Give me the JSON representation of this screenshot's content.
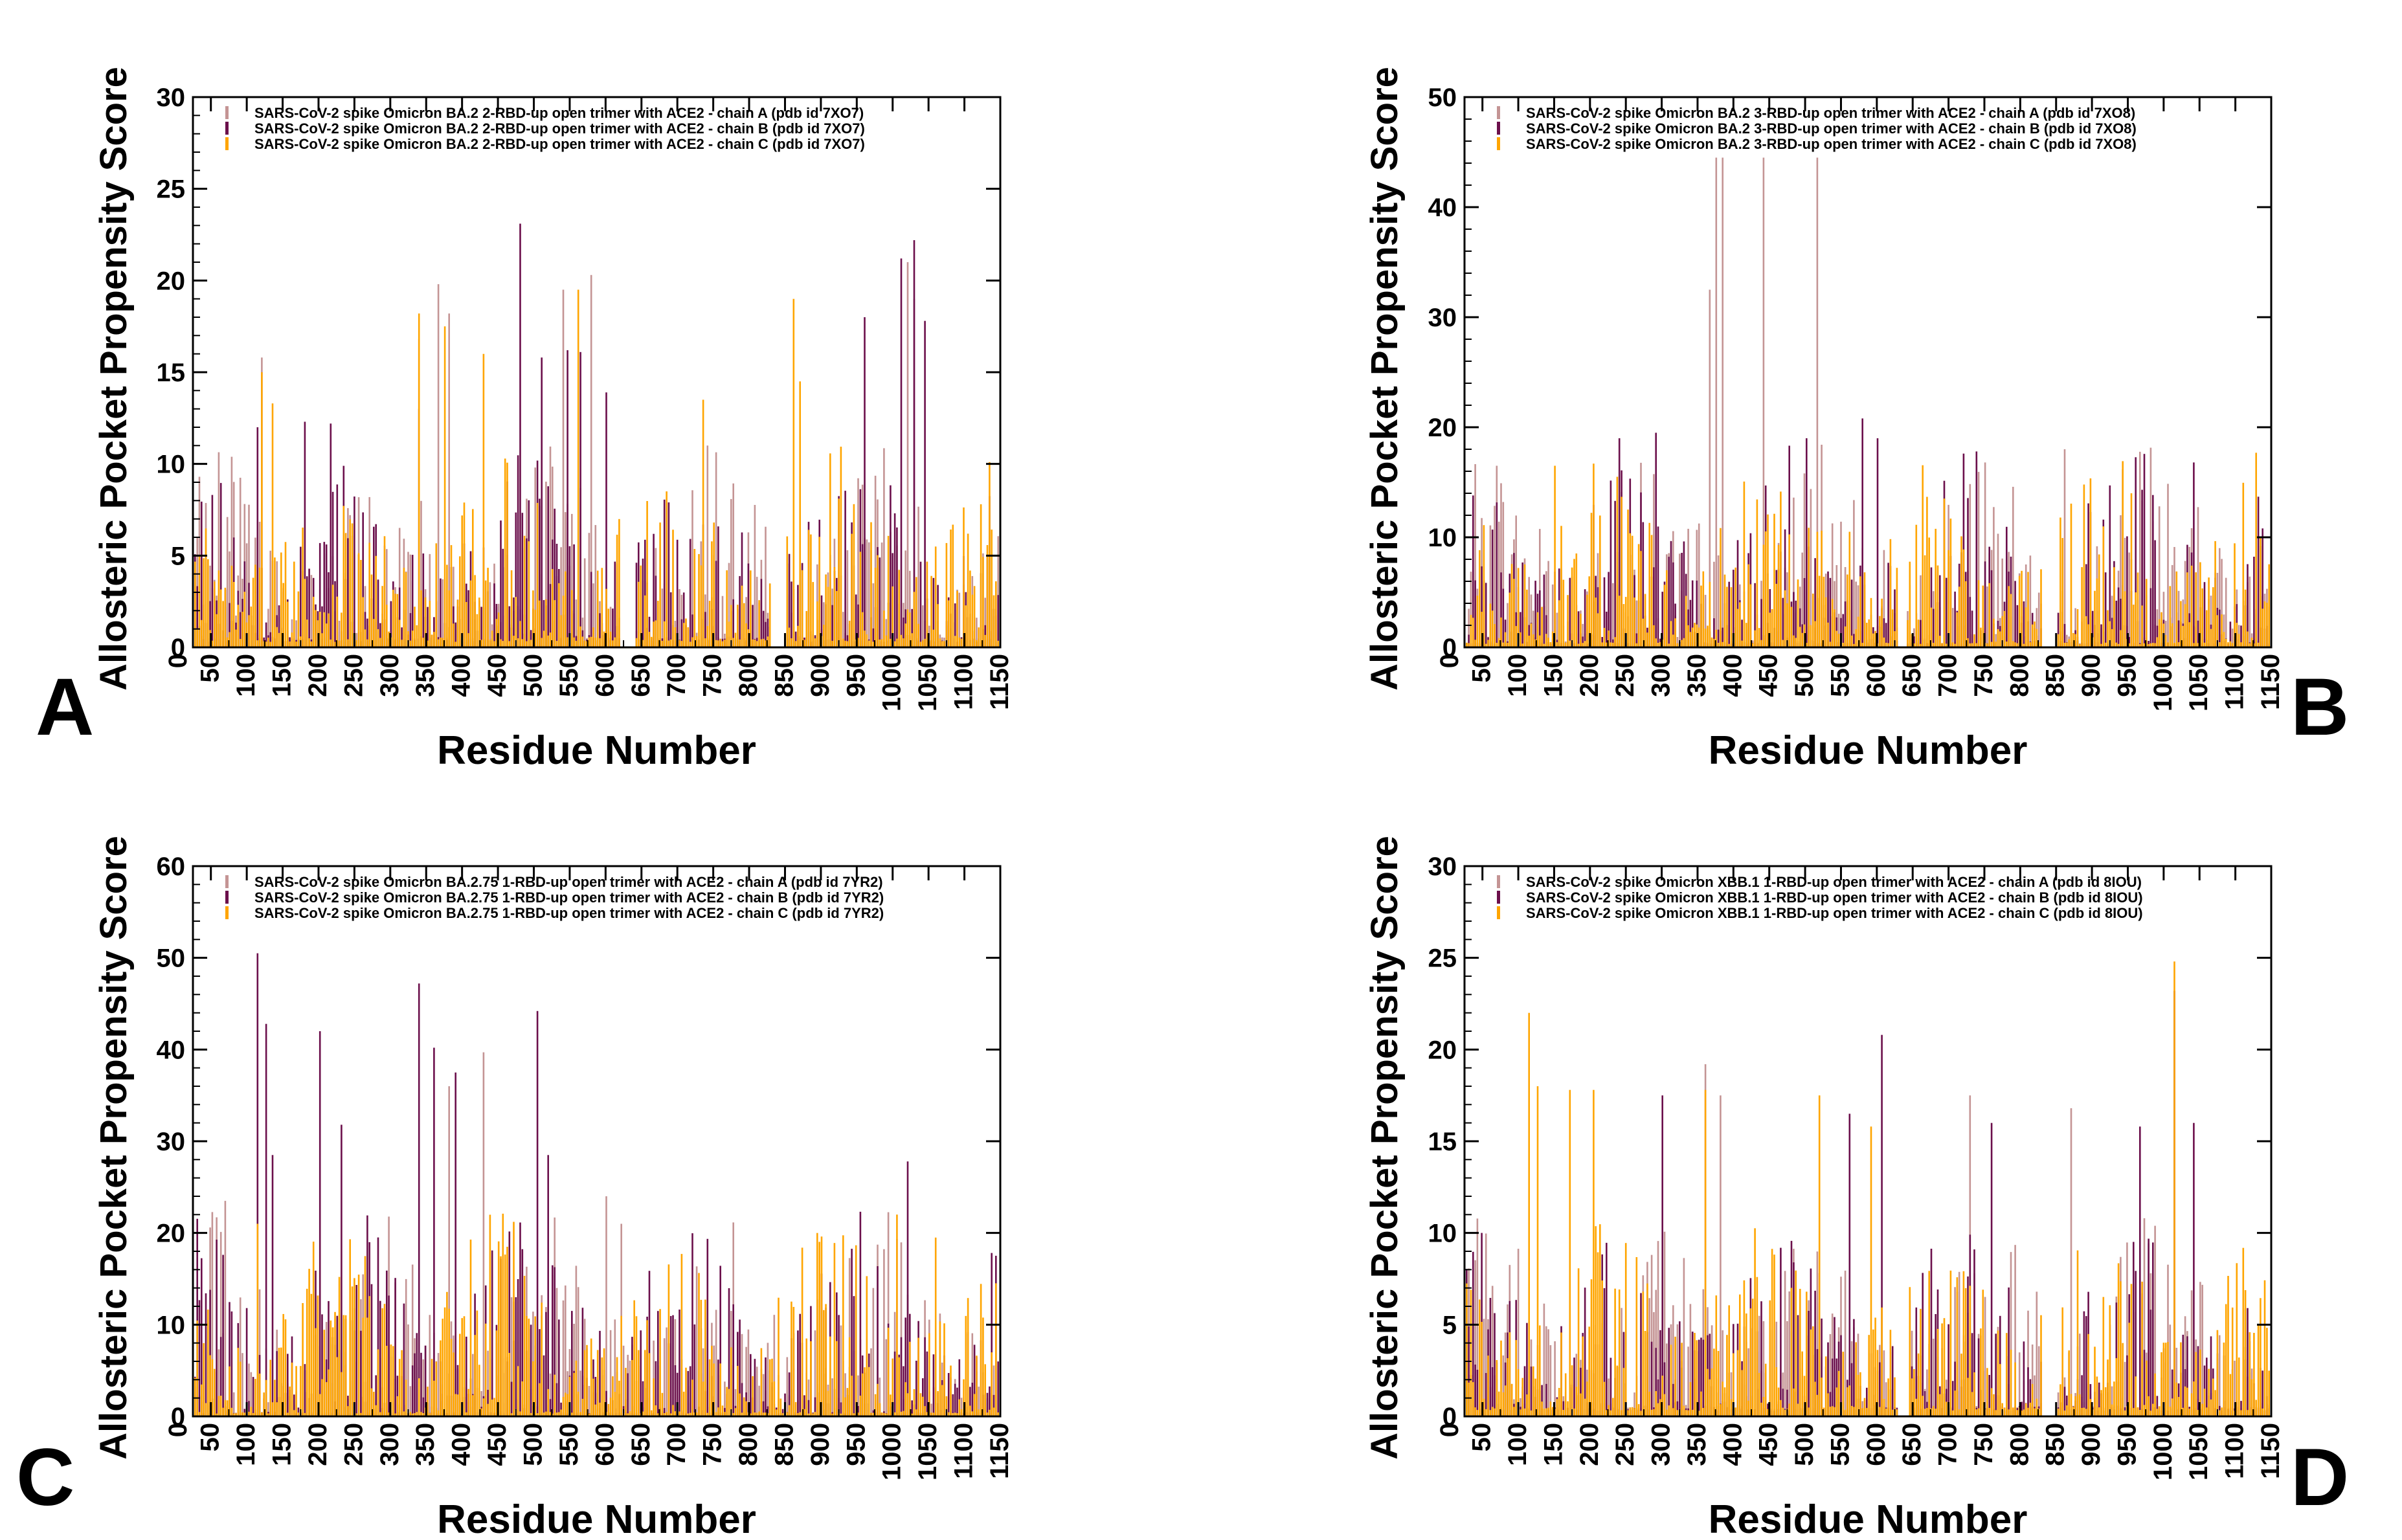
{
  "figure": {
    "x_axis_title": "Residue Number",
    "y_axis_title": "Allosteric Pocket  Propensity Score",
    "x_ticks": [
      0,
      50,
      100,
      150,
      200,
      250,
      300,
      350,
      400,
      450,
      500,
      550,
      600,
      650,
      700,
      750,
      800,
      850,
      900,
      950,
      1000,
      1050,
      1100,
      1150
    ],
    "series_colors": {
      "chain_a": "#c49494",
      "chain_b": "#6b0f4b",
      "chain_c": "#ffa500"
    }
  },
  "chart_data": [
    {
      "panel": "A",
      "type": "bar",
      "ylim": [
        0,
        30
      ],
      "yticks": [
        0,
        5,
        10,
        15,
        20,
        25,
        30
      ],
      "xlim": [
        25,
        1150
      ],
      "gaps": [
        [
          620,
          640
        ],
        [
          830,
          850
        ]
      ],
      "series": [
        {
          "name": "SARS-CoV-2 spike Omicron BA.2 2-RBD-up open trimer with ACE2 - chain A (pdb id 7XO7)",
          "color": "#c49494",
          "peaks": [
            [
              120,
              15.8
            ],
            [
              340,
              16.8
            ],
            [
              365,
              19.8
            ],
            [
              380,
              18.2
            ],
            [
              540,
              19.5
            ],
            [
              580,
              20.3
            ],
            [
              740,
              11.0
            ],
            [
              1020,
              21.0
            ],
            [
              1030,
              19.0
            ]
          ]
        },
        {
          "name": "SARS-CoV-2 spike Omicron BA.2 2-RBD-up open trimer with ACE2 - chain B (pdb id 7XO7)",
          "color": "#6b0f4b",
          "peaks": [
            [
              115,
              12.0
            ],
            [
              180,
              12.3
            ],
            [
              215,
              12.2
            ],
            [
              340,
              13.0
            ],
            [
              480,
              23.1
            ],
            [
              510,
              15.8
            ],
            [
              545,
              16.2
            ],
            [
              565,
              16.1
            ],
            [
              600,
              13.9
            ],
            [
              960,
              18.0
            ],
            [
              1010,
              21.2
            ],
            [
              1030,
              22.2
            ],
            [
              1045,
              17.8
            ]
          ]
        },
        {
          "name": "SARS-CoV-2 spike Omicron BA.2 2-RBD-up open trimer with ACE2 - chain C (pdb id 7XO7)",
          "color": "#ffa500",
          "peaks": [
            [
              120,
              15.0
            ],
            [
              135,
              13.3
            ],
            [
              340,
              18.2
            ],
            [
              375,
              17.5
            ],
            [
              430,
              16.0
            ],
            [
              560,
              19.5
            ],
            [
              735,
              13.5
            ],
            [
              860,
              19.0
            ],
            [
              870,
              14.5
            ]
          ]
        }
      ]
    },
    {
      "panel": "B",
      "type": "bar",
      "ylim": [
        0,
        50
      ],
      "yticks": [
        0,
        10,
        20,
        30,
        40,
        50
      ],
      "xlim": [
        25,
        1150
      ],
      "gaps": [
        [
          630,
          640
        ],
        [
          830,
          850
        ]
      ],
      "series": [
        {
          "name": "SARS-CoV-2 spike Omicron BA.2 3-RBD-up open trimer with ACE2 - chain A (pdb id 7XO8)",
          "color": "#c49494",
          "peaks": [
            [
              70,
              16.5
            ],
            [
              365,
              32.5
            ],
            [
              375,
              44.5
            ],
            [
              385,
              44.5
            ],
            [
              440,
              44.5
            ],
            [
              515,
              44.5
            ],
            [
              860,
              18.0
            ],
            [
              750,
              16.8
            ]
          ]
        },
        {
          "name": "SARS-CoV-2 spike Omicron BA.2 3-RBD-up open trimer with ACE2 - chain B (pdb id 7XO8)",
          "color": "#6b0f4b",
          "peaks": [
            [
              240,
              19.0
            ],
            [
              290,
              19.5
            ],
            [
              500,
              19.0
            ],
            [
              580,
              20.8
            ],
            [
              600,
              19.0
            ],
            [
              1040,
              16.8
            ]
          ]
        },
        {
          "name": "SARS-CoV-2 spike Omicron BA.2 3-RBD-up open trimer with ACE2 - chain C (pdb id 7XO8)",
          "color": "#ffa500",
          "peaks": [
            [
              150,
              16.5
            ],
            [
              560,
              10.5
            ],
            [
              955,
              14.0
            ]
          ]
        }
      ]
    },
    {
      "panel": "C",
      "type": "bar",
      "ylim": [
        0,
        60
      ],
      "yticks": [
        0,
        10,
        20,
        30,
        40,
        50,
        60
      ],
      "xlim": [
        25,
        1150
      ],
      "gaps": [],
      "series": [
        {
          "name": "SARS-CoV-2 spike Omicron BA.2.75 1-RBD-up open trimer with ACE2 - chain A (pdb id 7YR2)",
          "color": "#c49494",
          "peaks": [
            [
              70,
              23.5
            ],
            [
              380,
              36.0
            ],
            [
              430,
              39.7
            ],
            [
              600,
              24.0
            ],
            [
              620,
              21.0
            ]
          ]
        },
        {
          "name": "SARS-CoV-2 spike Omicron BA.2.75 1-RBD-up open trimer with ACE2 - chain B (pdb id 7YR2)",
          "color": "#6b0f4b",
          "peaks": [
            [
              115,
              50.5
            ],
            [
              125,
              42.8
            ],
            [
              135,
              28.5
            ],
            [
              200,
              42.0
            ],
            [
              230,
              31.8
            ],
            [
              340,
              47.2
            ],
            [
              360,
              40.2
            ],
            [
              390,
              37.5
            ],
            [
              505,
              44.2
            ],
            [
              520,
              28.5
            ],
            [
              1020,
              27.8
            ]
          ]
        },
        {
          "name": "SARS-CoV-2 spike Omicron BA.2.75 1-RBD-up open trimer with ACE2 - chain C (pdb id 7YR2)",
          "color": "#ffa500",
          "peaks": [
            [
              115,
              21.0
            ],
            [
              1005,
              22.0
            ],
            [
              1060,
              19.5
            ]
          ]
        }
      ]
    },
    {
      "panel": "D",
      "type": "bar",
      "ylim": [
        0,
        30
      ],
      "yticks": [
        0,
        5,
        10,
        15,
        20,
        25,
        30
      ],
      "xlim": [
        25,
        1150
      ],
      "gaps": [
        [
          630,
          645
        ],
        [
          830,
          850
        ]
      ],
      "series": [
        {
          "name": "SARS-CoV-2 spike Omicron XBB.1 1-RBD-up open trimer with ACE2 - chain A (pdb id 8IOU)",
          "color": "#c49494",
          "peaks": [
            [
              360,
              19.2
            ],
            [
              380,
              17.5
            ],
            [
              730,
              17.5
            ],
            [
              870,
              16.8
            ]
          ]
        },
        {
          "name": "SARS-CoV-2 spike Omicron XBB.1 1-RBD-up open trimer with ACE2 - chain B (pdb id 8IOU)",
          "color": "#6b0f4b",
          "peaks": [
            [
              300,
              17.5
            ],
            [
              560,
              16.5
            ],
            [
              605,
              20.8
            ],
            [
              760,
              16.0
            ],
            [
              965,
              15.8
            ],
            [
              1015,
              23.2
            ],
            [
              1040,
              16.0
            ]
          ]
        },
        {
          "name": "SARS-CoV-2 spike Omicron XBB.1 1-RBD-up open trimer with ACE2 - chain C (pdb id 8IOU)",
          "color": "#ffa500",
          "peaks": [
            [
              115,
              22.0
            ],
            [
              125,
              18.0
            ],
            [
              170,
              17.8
            ],
            [
              205,
              17.8
            ],
            [
              360,
              17.8
            ],
            [
              520,
              17.5
            ],
            [
              590,
              15.8
            ],
            [
              1015,
              24.8
            ]
          ]
        }
      ]
    }
  ]
}
